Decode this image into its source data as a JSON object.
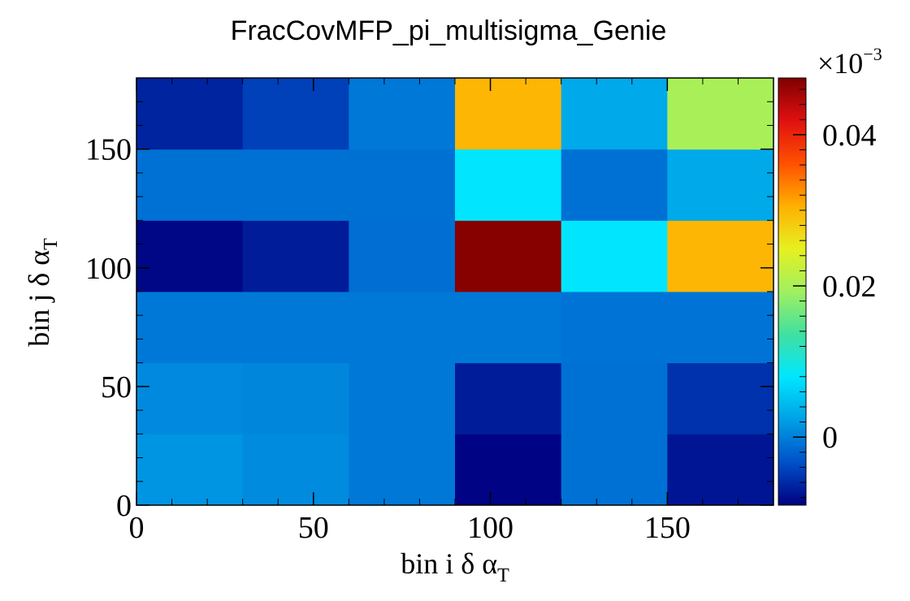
{
  "chart_data": {
    "type": "heatmap",
    "title": "FracCovMFP_pi_multisigma_Genie",
    "xlabel": {
      "main": "bin i δ α",
      "subscript": "T"
    },
    "ylabel": {
      "main": "bin j δ α",
      "subscript": "T"
    },
    "x_edges": [
      0,
      30,
      60,
      90,
      120,
      150,
      180
    ],
    "y_edges": [
      0,
      30,
      60,
      90,
      120,
      150,
      180
    ],
    "xlim": [
      0,
      180
    ],
    "ylim": [
      0,
      180
    ],
    "x_ticks": [
      0,
      50,
      100,
      150
    ],
    "y_ticks": [
      0,
      50,
      100,
      150
    ],
    "x_tick_labels": [
      "0",
      "50",
      "100",
      "150"
    ],
    "y_tick_labels": [
      "0",
      "50",
      "100",
      "150"
    ],
    "z_scale_label": {
      "base": "×10",
      "exponent": "−3"
    },
    "z_range": [
      -0.009,
      0.0475
    ],
    "z_ticks": [
      0,
      0.02,
      0.04
    ],
    "z_tick_labels": [
      "0",
      "0.02",
      "0.04"
    ],
    "colormap": [
      "#000080",
      "#0050c8",
      "#00a0e6",
      "#00e6ff",
      "#40e0a0",
      "#a0f060",
      "#e6f020",
      "#ffb000",
      "#ff5000",
      "#e01010",
      "#800000"
    ],
    "rows_bottom_to_top": [
      [
        0.0015,
        0.0008,
        -0.0005,
        -0.0088,
        -0.001,
        -0.0075
      ],
      [
        0.0007,
        0.0005,
        -0.0005,
        -0.007,
        -0.001,
        -0.0055
      ],
      [
        -0.0005,
        -0.0005,
        -0.0005,
        -0.0005,
        -0.0008,
        -0.0008
      ],
      [
        -0.0085,
        -0.007,
        -0.0012,
        0.047,
        0.008,
        0.03
      ],
      [
        -0.001,
        -0.001,
        -0.001,
        0.008,
        -0.001,
        0.003
      ],
      [
        -0.0065,
        -0.0045,
        -0.0005,
        0.03,
        0.003,
        0.02
      ]
    ]
  }
}
